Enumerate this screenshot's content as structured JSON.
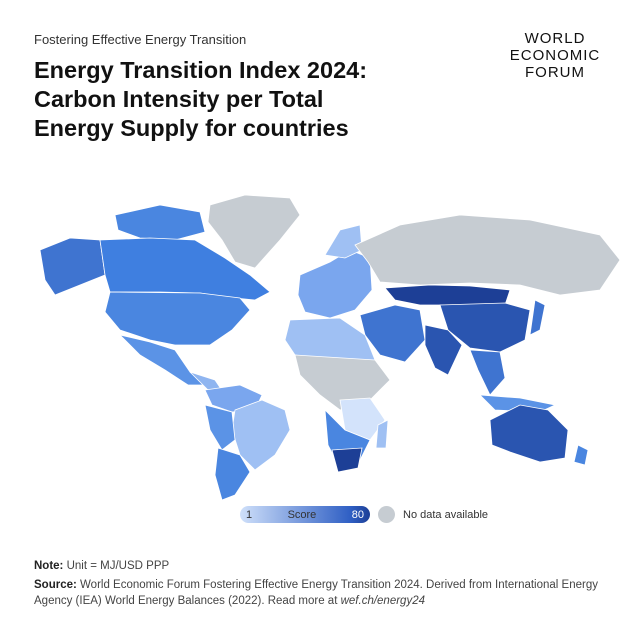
{
  "header": {
    "kicker": "Fostering Effective Energy Transition",
    "title": "Energy Transition Index 2024: Carbon Intensity per Total Energy Supply for countries"
  },
  "logo": {
    "lines": [
      "WORLD",
      "ECONOMIC",
      "FORUM"
    ]
  },
  "legend": {
    "min": "1",
    "label": "Score",
    "max": "80",
    "no_data": "No data available"
  },
  "colors": {
    "low": "#cfe0fa",
    "mid": "#4a86e0",
    "high": "#1d3f96",
    "no_data": "#c6ccd2"
  },
  "footer": {
    "note_label": "Note:",
    "note_text": "Unit = MJ/USD PPP",
    "source_label": "Source:",
    "source_text": "World Economic Forum Fostering Effective Energy Transition 2024. Derived from International Energy Agency (IEA) World Energy Balances (2022). Read more at ",
    "source_link": "wef.ch/energy24"
  }
}
